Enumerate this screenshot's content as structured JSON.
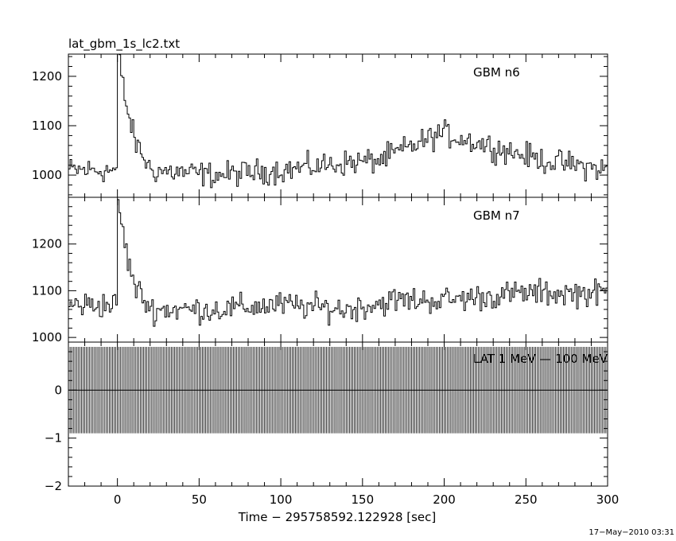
{
  "chart_data": [
    {
      "type": "line",
      "title": "lat_gbm_1s_lc2.txt",
      "series": [
        {
          "name": "GBM n6"
        }
      ],
      "x": {
        "range": [
          -30,
          300
        ],
        "ticks": [
          0,
          50,
          100,
          150,
          200,
          250,
          300
        ]
      },
      "y": {
        "range": [
          955,
          1245
        ],
        "ticks": [
          1000,
          1100,
          1200
        ]
      },
      "grid": false,
      "features": [
        {
          "x": 0,
          "y": 1245,
          "note": "peak"
        },
        {
          "x": 5,
          "y": 1140
        },
        {
          "x": 10,
          "y": 1070
        },
        {
          "x": 20,
          "y": 1010
        },
        {
          "x": 60,
          "y": 1000
        },
        {
          "x": 100,
          "y": 1010
        },
        {
          "x": 140,
          "y": 1025
        },
        {
          "x": 160,
          "y": 1030
        },
        {
          "x": 198,
          "y": 1085
        },
        {
          "x": 260,
          "y": 1030
        },
        {
          "x": 300,
          "y": 1010
        }
      ],
      "baseline": 1010,
      "noise_amplitude": 38
    },
    {
      "type": "line",
      "series": [
        {
          "name": "GBM n7"
        }
      ],
      "x": {
        "range": [
          -30,
          300
        ],
        "ticks": [
          0,
          50,
          100,
          150,
          200,
          250,
          300
        ]
      },
      "y": {
        "range": [
          990,
          1300
        ],
        "ticks": [
          1000,
          1100,
          1200
        ]
      },
      "grid": false,
      "features": [
        {
          "x": 0,
          "y": 1295,
          "note": "peak"
        },
        {
          "x": 5,
          "y": 1180
        },
        {
          "x": 10,
          "y": 1110
        },
        {
          "x": 20,
          "y": 1060
        },
        {
          "x": 60,
          "y": 1060
        },
        {
          "x": 100,
          "y": 1070
        },
        {
          "x": 140,
          "y": 1060
        },
        {
          "x": 170,
          "y": 1080
        },
        {
          "x": 200,
          "y": 1080
        },
        {
          "x": 250,
          "y": 1095
        },
        {
          "x": 300,
          "y": 1095
        }
      ],
      "baseline": 1070,
      "noise_amplitude": 42
    },
    {
      "type": "line",
      "series": [
        {
          "name": "LAT 1 MeV — 100 MeV"
        }
      ],
      "x": {
        "range": [
          -30,
          300
        ],
        "ticks": [
          0,
          50,
          100,
          150,
          200,
          250,
          300
        ]
      },
      "y": {
        "range": [
          -2,
          1
        ],
        "ticks": [
          -2,
          -1,
          0
        ]
      },
      "grid": false,
      "value": 0,
      "error_bar": [
        -0.9,
        0.9
      ],
      "step": 1
    }
  ],
  "xlabel": "Time − 295758592.122928 [sec]",
  "timestamp": "17−May−2010 03:31"
}
